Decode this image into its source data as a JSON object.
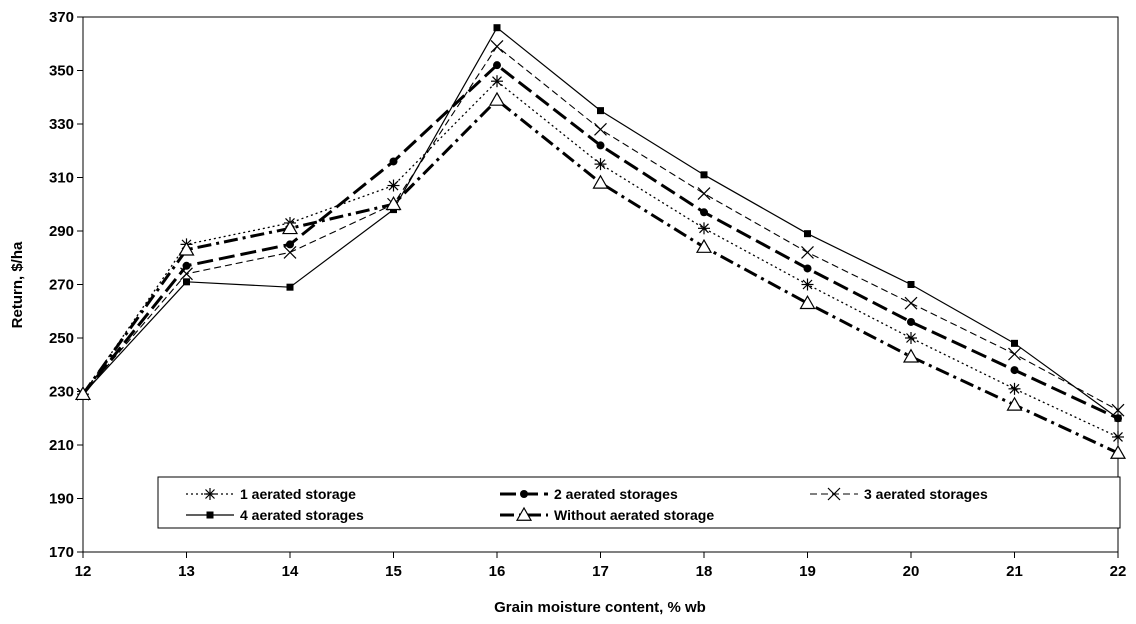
{
  "chart_data": {
    "type": "line",
    "title": "",
    "xlabel": "Grain moisture content, % wb",
    "ylabel": "Return, $/ha",
    "xlim": [
      12,
      22
    ],
    "ylim": [
      170,
      370
    ],
    "x": [
      12,
      13,
      14,
      15,
      16,
      17,
      18,
      19,
      20,
      21,
      22
    ],
    "x_tick_labels": [
      "12",
      "13",
      "14",
      "15",
      "16",
      "17",
      "18",
      "19",
      "20",
      "21",
      "22"
    ],
    "y_ticks": [
      170,
      190,
      210,
      230,
      250,
      270,
      290,
      310,
      330,
      350,
      370
    ],
    "y_tick_labels": [
      "170",
      "190",
      "210",
      "230",
      "250",
      "270",
      "290",
      "310",
      "330",
      "350",
      "370"
    ],
    "grid": false,
    "legend_position": "bottom",
    "series": [
      {
        "name": "1 aerated storage",
        "values": [
          229,
          285,
          293,
          307,
          346,
          315,
          291,
          270,
          250,
          231,
          213
        ],
        "marker": "asterisk",
        "line_style": "dotted",
        "color": "#000000"
      },
      {
        "name": "2 aerated storages",
        "values": [
          229,
          277,
          285,
          316,
          352,
          322,
          297,
          276,
          256,
          238,
          220
        ],
        "marker": "circle",
        "line_style": "long-dash",
        "color": "#000000"
      },
      {
        "name": "3 aerated storages",
        "values": [
          229,
          274,
          282,
          300,
          359,
          328,
          304,
          282,
          263,
          244,
          223
        ],
        "marker": "x",
        "line_style": "dashed",
        "color": "#000000"
      },
      {
        "name": "4 aerated storages",
        "values": [
          229,
          271,
          269,
          298,
          366,
          335,
          311,
          289,
          270,
          248,
          220
        ],
        "marker": "square",
        "line_style": "solid",
        "color": "#000000"
      },
      {
        "name": "Without aerated storage",
        "values": [
          229,
          283,
          291,
          300,
          339,
          308,
          284,
          263,
          243,
          225,
          207
        ],
        "marker": "triangle",
        "line_style": "dash-dot",
        "color": "#000000"
      }
    ]
  }
}
